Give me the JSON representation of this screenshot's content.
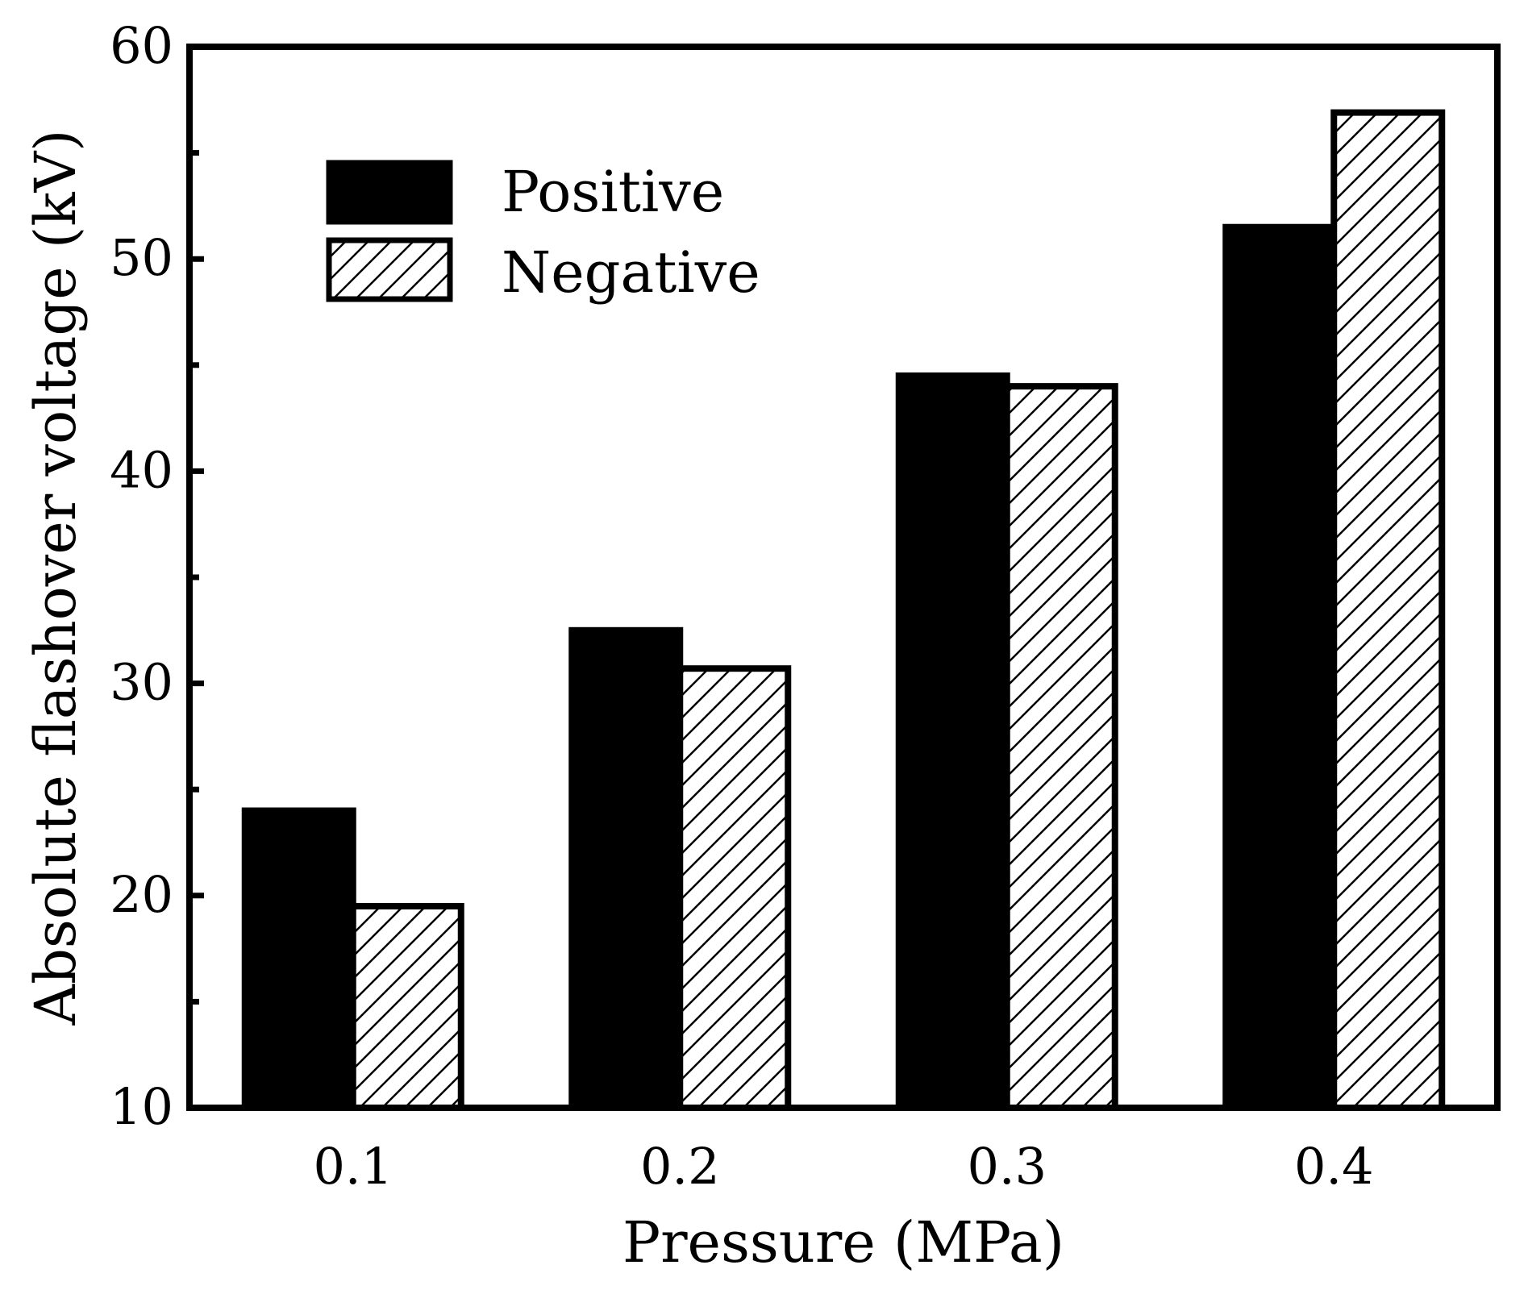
{
  "chart_data": {
    "type": "bar",
    "title": "",
    "xlabel": "Pressure (MPa)",
    "ylabel": "Absolute flashover voltage (kV)",
    "categories": [
      "0.1",
      "0.2",
      "0.3",
      "0.4"
    ],
    "series": [
      {
        "name": "Positive",
        "values": [
          24.0,
          32.5,
          44.5,
          51.5
        ],
        "fill": "solid"
      },
      {
        "name": "Negative",
        "values": [
          19.5,
          30.7,
          44.0,
          56.9
        ],
        "fill": "hatched"
      }
    ],
    "ylim": [
      10,
      60
    ],
    "yticks": [
      10,
      20,
      30,
      40,
      50,
      60
    ],
    "yminor_ticks": [
      15,
      25,
      35,
      45,
      55
    ],
    "ytick_labels": [
      "10",
      "20",
      "30",
      "40",
      "50",
      "60"
    ],
    "legend_position": "top-left",
    "grid": false,
    "colors": {
      "bar": "#000000",
      "background": "#ffffff"
    }
  }
}
